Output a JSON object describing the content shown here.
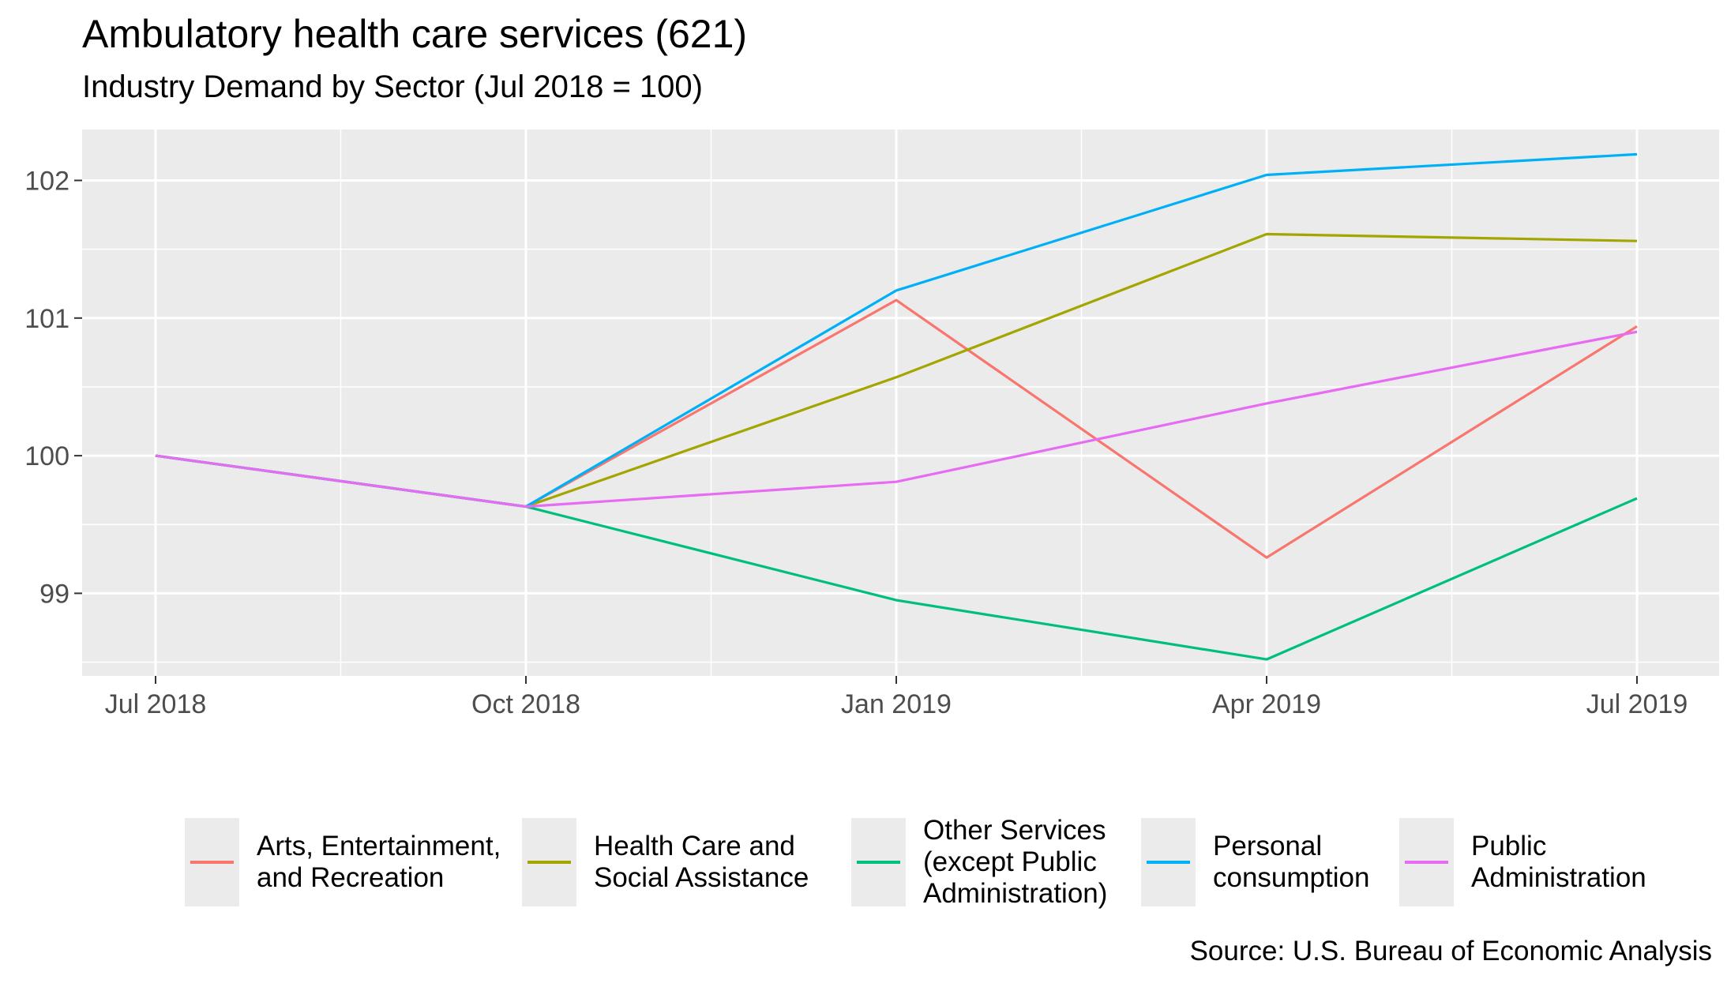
{
  "title": "Ambulatory health care services (621)",
  "subtitle": "Industry Demand by Sector (Jul 2018 = 100)",
  "caption": "Source: U.S. Bureau of Economic Analysis",
  "chart_data": {
    "type": "line",
    "categories": [
      "Jul 2018",
      "Oct 2018",
      "Jan 2019",
      "Apr 2019",
      "Jul 2019"
    ],
    "ylim": [
      98.4,
      102.37
    ],
    "yticks": [
      99,
      100,
      101,
      102
    ],
    "grid": true,
    "legend_position": "bottom",
    "series": [
      {
        "name": "Arts, Entertainment, and Recreation",
        "color": "#F8766D",
        "values": [
          100,
          99.63,
          101.13,
          99.26,
          100.94
        ]
      },
      {
        "name": "Health Care and Social Assistance",
        "color": "#A3A500",
        "values": [
          100,
          99.63,
          100.57,
          101.61,
          101.56
        ]
      },
      {
        "name": "Other Services (except Public Administration)",
        "color": "#00BF7D",
        "values": [
          100,
          99.63,
          98.95,
          98.52,
          99.69
        ]
      },
      {
        "name": "Personal consumption",
        "color": "#00B0F6",
        "values": [
          100,
          99.63,
          101.2,
          102.04,
          102.19
        ]
      },
      {
        "name": "Public Administration",
        "color": "#E76BF3",
        "values": [
          100,
          99.63,
          99.81,
          100.38,
          100.9
        ]
      }
    ]
  }
}
